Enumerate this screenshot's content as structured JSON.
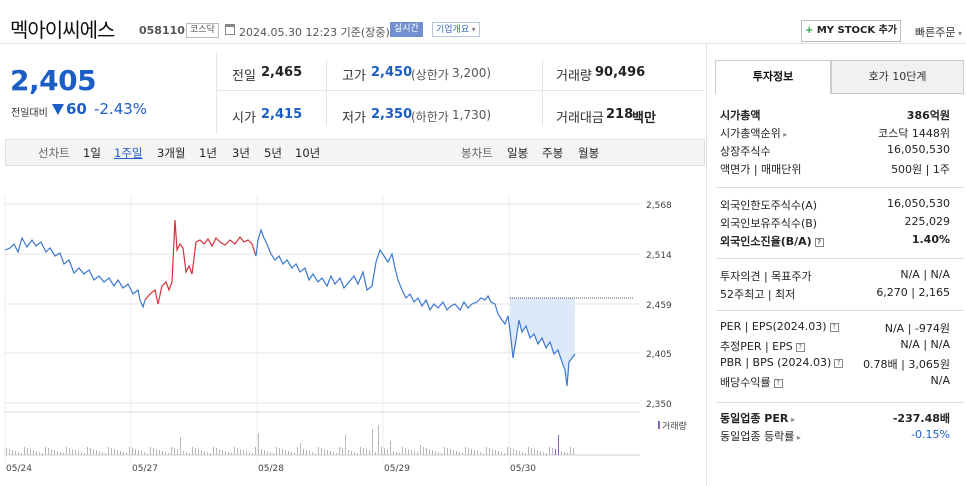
{
  "header": {
    "name": "멕아이씨에스",
    "code": "058110",
    "market": "코스닥",
    "datetime": "2024.05.30 12:23 기준(장중)",
    "realtime": "실시간",
    "corp_info": "기업개요",
    "mystock": "MY STOCK 추가",
    "quick_order": "빠른주문"
  },
  "price": {
    "current": "2,405",
    "change_label": "전일대비",
    "change": "60",
    "change_pct": "-2.43%"
  },
  "quote": {
    "prev_label": "전일",
    "prev": "2,465",
    "high_label": "고가",
    "high": "2,450",
    "upper_label": "(상한가",
    "upper": "3,200)",
    "volume_label": "거래량",
    "volume": "90,496",
    "open_label": "시가",
    "open": "2,415",
    "low_label": "저가",
    "low": "2,350",
    "lower_label": "(하한가",
    "lower": "1,730)",
    "amount_label": "거래대금",
    "amount": "218",
    "amount_unit": "백만"
  },
  "toolbar": {
    "line_chart": "선차트",
    "periods": [
      "1일",
      "1주일",
      "3개월",
      "1년",
      "3년",
      "5년",
      "10년"
    ],
    "candle_chart": "봉차트",
    "candles": [
      "일봉",
      "주봉",
      "월봉"
    ]
  },
  "chart_data": {
    "type": "line",
    "y_ticks": [
      "2,568",
      "2,514",
      "2,459",
      "2,405",
      "2,350"
    ],
    "ylim": [
      2350,
      2568
    ],
    "x_ticks": [
      "05/24",
      "05/27",
      "05/28",
      "05/29",
      "05/30"
    ],
    "volume_label": "거래량",
    "colors": {
      "line": "#3c78d0",
      "up": "#d6323a",
      "fill": "#dde9f8",
      "volume": "#b8b8b8"
    }
  },
  "panel": {
    "tab_info": "투자정보",
    "tab_orderbook": "호가 10단계",
    "rows1": [
      {
        "l": "시가총액",
        "r": "386억원"
      },
      {
        "l": "시가총액순위",
        "r": "코스닥 1448위"
      },
      {
        "l": "상장주식수",
        "r": "16,050,530"
      },
      {
        "l": "액면가 | 매매단위",
        "r": "500원 | 1주"
      }
    ],
    "rows2": [
      {
        "l": "외국인한도주식수(A)",
        "r": "16,050,530"
      },
      {
        "l": "외국인보유주식수(B)",
        "r": "225,029"
      },
      {
        "l": "외국인소진율(B/A)",
        "r": "1.40%"
      }
    ],
    "rows3": [
      {
        "l": "투자의견 | 목표주가",
        "r": "N/A | N/A"
      },
      {
        "l": "52주최고 | 최저",
        "r": "6,270 | 2,165"
      }
    ],
    "rows4": [
      {
        "l": "PER | EPS(2024.03)",
        "r": "N/A | -974원"
      },
      {
        "l": "추정PER | EPS",
        "r": "N/A | N/A"
      },
      {
        "l": "PBR | BPS (2024.03)",
        "r": "0.78배 | 3,065원"
      },
      {
        "l": "배당수익률",
        "r": "N/A"
      }
    ],
    "rows5": [
      {
        "l": "동일업종 PER",
        "r": "-237.48배"
      },
      {
        "l": "동일업종 등락률",
        "r": "-0.15%"
      }
    ]
  }
}
